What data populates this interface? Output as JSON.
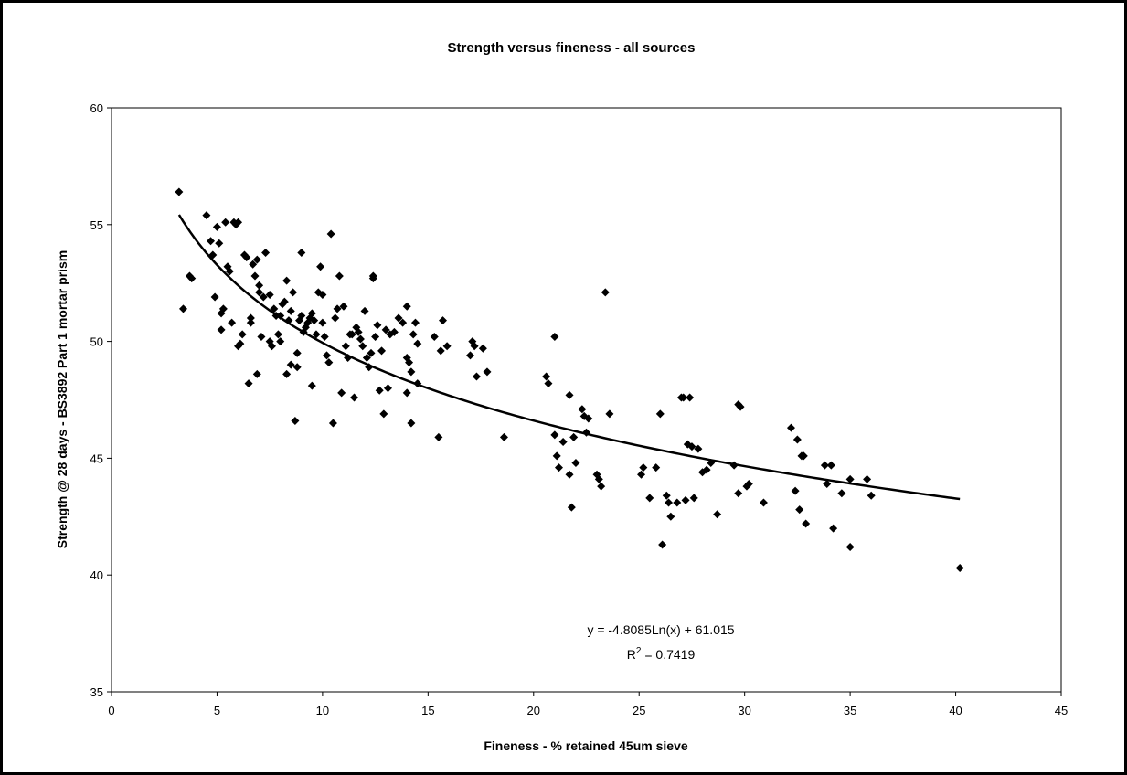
{
  "chart_data": {
    "type": "scatter",
    "title": "Strength versus fineness - all sources",
    "xlabel": "Fineness - % retained 45um sieve",
    "ylabel": "Strength @ 28 days - BS3892 Part 1 mortar prism",
    "xlim": [
      0,
      45
    ],
    "ylim": [
      35,
      60
    ],
    "x_ticks": [
      0,
      5,
      10,
      15,
      20,
      25,
      30,
      35,
      40,
      45
    ],
    "y_ticks": [
      35,
      40,
      45,
      50,
      55,
      60
    ],
    "x_tick_labels": [
      "0",
      "5",
      "10",
      "15",
      "20",
      "25",
      "30",
      "35",
      "40",
      "45"
    ],
    "y_tick_labels": [
      "35",
      "40",
      "45",
      "50",
      "55",
      "60"
    ],
    "grid": false,
    "legend": "none",
    "marker": "diamond",
    "marker_color": "#000000",
    "trendline": {
      "type": "logarithmic",
      "slope": -4.8085,
      "intercept": 61.015,
      "x_range": [
        3.2,
        40.2
      ],
      "equation_label": "y = -4.8085Ln(x) + 61.015",
      "r2_label_prefix": "R",
      "r2_label_sup": "2",
      "r2_label_suffix": " = 0.7419"
    },
    "points": [
      [
        3.2,
        56.4
      ],
      [
        3.4,
        51.4
      ],
      [
        3.7,
        52.8
      ],
      [
        3.8,
        52.7
      ],
      [
        4.5,
        55.4
      ],
      [
        4.7,
        54.3
      ],
      [
        4.8,
        53.7
      ],
      [
        4.9,
        51.9
      ],
      [
        5.0,
        54.9
      ],
      [
        5.1,
        54.2
      ],
      [
        5.2,
        51.2
      ],
      [
        5.2,
        50.5
      ],
      [
        5.3,
        51.4
      ],
      [
        5.4,
        55.1
      ],
      [
        5.5,
        53.2
      ],
      [
        5.6,
        53.0
      ],
      [
        5.7,
        50.8
      ],
      [
        5.8,
        55.1
      ],
      [
        5.9,
        55.0
      ],
      [
        6.0,
        55.1
      ],
      [
        6.0,
        49.8
      ],
      [
        6.1,
        49.9
      ],
      [
        6.2,
        50.3
      ],
      [
        6.3,
        53.7
      ],
      [
        6.4,
        53.6
      ],
      [
        6.5,
        48.2
      ],
      [
        6.6,
        50.8
      ],
      [
        6.6,
        51.0
      ],
      [
        6.7,
        53.3
      ],
      [
        6.8,
        52.8
      ],
      [
        6.9,
        48.6
      ],
      [
        6.9,
        53.5
      ],
      [
        7.0,
        52.4
      ],
      [
        7.0,
        52.1
      ],
      [
        7.1,
        50.2
      ],
      [
        7.2,
        51.9
      ],
      [
        7.3,
        53.8
      ],
      [
        7.5,
        52.0
      ],
      [
        7.5,
        50.0
      ],
      [
        7.6,
        49.8
      ],
      [
        7.7,
        51.4
      ],
      [
        7.8,
        51.1
      ],
      [
        7.9,
        50.3
      ],
      [
        8.0,
        51.1
      ],
      [
        8.0,
        50.0
      ],
      [
        8.1,
        51.6
      ],
      [
        8.2,
        51.7
      ],
      [
        8.3,
        48.6
      ],
      [
        8.3,
        52.6
      ],
      [
        8.4,
        50.9
      ],
      [
        8.5,
        49.0
      ],
      [
        8.5,
        51.3
      ],
      [
        8.6,
        52.1
      ],
      [
        8.7,
        46.6
      ],
      [
        8.8,
        49.5
      ],
      [
        8.8,
        48.9
      ],
      [
        8.9,
        50.9
      ],
      [
        9.0,
        51.1
      ],
      [
        9.0,
        53.8
      ],
      [
        9.1,
        50.4
      ],
      [
        9.2,
        50.6
      ],
      [
        9.3,
        50.8
      ],
      [
        9.4,
        51.0
      ],
      [
        9.5,
        51.2
      ],
      [
        9.5,
        48.1
      ],
      [
        9.6,
        50.9
      ],
      [
        9.7,
        50.3
      ],
      [
        9.8,
        52.1
      ],
      [
        9.9,
        53.2
      ],
      [
        10.0,
        52.0
      ],
      [
        10.0,
        50.8
      ],
      [
        10.1,
        50.2
      ],
      [
        10.2,
        49.4
      ],
      [
        10.3,
        49.1
      ],
      [
        10.4,
        54.6
      ],
      [
        10.5,
        46.5
      ],
      [
        10.6,
        51.0
      ],
      [
        10.7,
        51.4
      ],
      [
        10.8,
        52.8
      ],
      [
        10.9,
        47.8
      ],
      [
        11.0,
        51.5
      ],
      [
        11.1,
        49.8
      ],
      [
        11.2,
        49.3
      ],
      [
        11.3,
        50.3
      ],
      [
        11.4,
        50.3
      ],
      [
        11.5,
        47.6
      ],
      [
        11.6,
        50.6
      ],
      [
        11.7,
        50.4
      ],
      [
        11.8,
        50.1
      ],
      [
        11.9,
        49.8
      ],
      [
        12.0,
        51.3
      ],
      [
        12.1,
        49.3
      ],
      [
        12.2,
        48.9
      ],
      [
        12.3,
        49.5
      ],
      [
        12.4,
        52.7
      ],
      [
        12.4,
        52.8
      ],
      [
        12.5,
        50.2
      ],
      [
        12.6,
        50.7
      ],
      [
        12.7,
        47.9
      ],
      [
        12.8,
        49.6
      ],
      [
        12.9,
        46.9
      ],
      [
        13.0,
        50.5
      ],
      [
        13.1,
        48.0
      ],
      [
        13.2,
        50.3
      ],
      [
        13.4,
        50.4
      ],
      [
        13.6,
        51.0
      ],
      [
        13.8,
        50.8
      ],
      [
        14.0,
        49.3
      ],
      [
        14.0,
        51.5
      ],
      [
        14.1,
        49.1
      ],
      [
        14.2,
        48.7
      ],
      [
        14.3,
        50.3
      ],
      [
        14.4,
        50.8
      ],
      [
        14.5,
        49.9
      ],
      [
        14.0,
        47.8
      ],
      [
        14.2,
        46.5
      ],
      [
        14.5,
        48.2
      ],
      [
        15.3,
        50.2
      ],
      [
        15.6,
        49.6
      ],
      [
        15.7,
        50.9
      ],
      [
        15.9,
        49.8
      ],
      [
        15.5,
        45.9
      ],
      [
        17.0,
        49.4
      ],
      [
        17.1,
        50.0
      ],
      [
        17.2,
        49.8
      ],
      [
        17.3,
        48.5
      ],
      [
        17.6,
        49.7
      ],
      [
        17.8,
        48.7
      ],
      [
        18.6,
        45.9
      ],
      [
        20.6,
        48.5
      ],
      [
        20.7,
        48.2
      ],
      [
        21.0,
        50.2
      ],
      [
        21.0,
        46.0
      ],
      [
        21.1,
        45.1
      ],
      [
        21.2,
        44.6
      ],
      [
        21.4,
        45.7
      ],
      [
        21.7,
        47.7
      ],
      [
        21.7,
        44.3
      ],
      [
        21.8,
        42.9
      ],
      [
        21.9,
        45.9
      ],
      [
        22.0,
        44.8
      ],
      [
        22.3,
        47.1
      ],
      [
        22.4,
        46.8
      ],
      [
        22.5,
        46.1
      ],
      [
        22.6,
        46.7
      ],
      [
        23.0,
        44.3
      ],
      [
        23.1,
        44.1
      ],
      [
        23.2,
        43.8
      ],
      [
        23.4,
        52.1
      ],
      [
        23.6,
        46.9
      ],
      [
        25.1,
        44.3
      ],
      [
        25.2,
        44.6
      ],
      [
        25.5,
        43.3
      ],
      [
        25.8,
        44.6
      ],
      [
        26.0,
        46.9
      ],
      [
        26.1,
        41.3
      ],
      [
        26.3,
        43.4
      ],
      [
        26.4,
        43.1
      ],
      [
        26.5,
        42.5
      ],
      [
        26.8,
        43.1
      ],
      [
        27.0,
        47.6
      ],
      [
        27.1,
        47.6
      ],
      [
        27.2,
        43.2
      ],
      [
        27.3,
        45.6
      ],
      [
        27.4,
        47.6
      ],
      [
        27.5,
        45.5
      ],
      [
        27.6,
        43.3
      ],
      [
        27.8,
        45.4
      ],
      [
        28.0,
        44.4
      ],
      [
        28.2,
        44.5
      ],
      [
        28.4,
        44.8
      ],
      [
        28.7,
        42.6
      ],
      [
        29.5,
        44.7
      ],
      [
        29.7,
        43.5
      ],
      [
        29.7,
        47.3
      ],
      [
        29.8,
        47.2
      ],
      [
        30.1,
        43.8
      ],
      [
        30.2,
        43.9
      ],
      [
        30.9,
        43.1
      ],
      [
        32.2,
        46.3
      ],
      [
        32.4,
        43.6
      ],
      [
        32.5,
        45.8
      ],
      [
        32.6,
        42.8
      ],
      [
        32.7,
        45.1
      ],
      [
        32.8,
        45.1
      ],
      [
        32.9,
        42.2
      ],
      [
        33.8,
        44.7
      ],
      [
        33.9,
        43.9
      ],
      [
        34.1,
        44.7
      ],
      [
        34.2,
        42.0
      ],
      [
        34.6,
        43.5
      ],
      [
        35.0,
        41.2
      ],
      [
        35.0,
        44.1
      ],
      [
        35.8,
        44.1
      ],
      [
        36.0,
        43.4
      ],
      [
        40.2,
        40.3
      ]
    ]
  }
}
